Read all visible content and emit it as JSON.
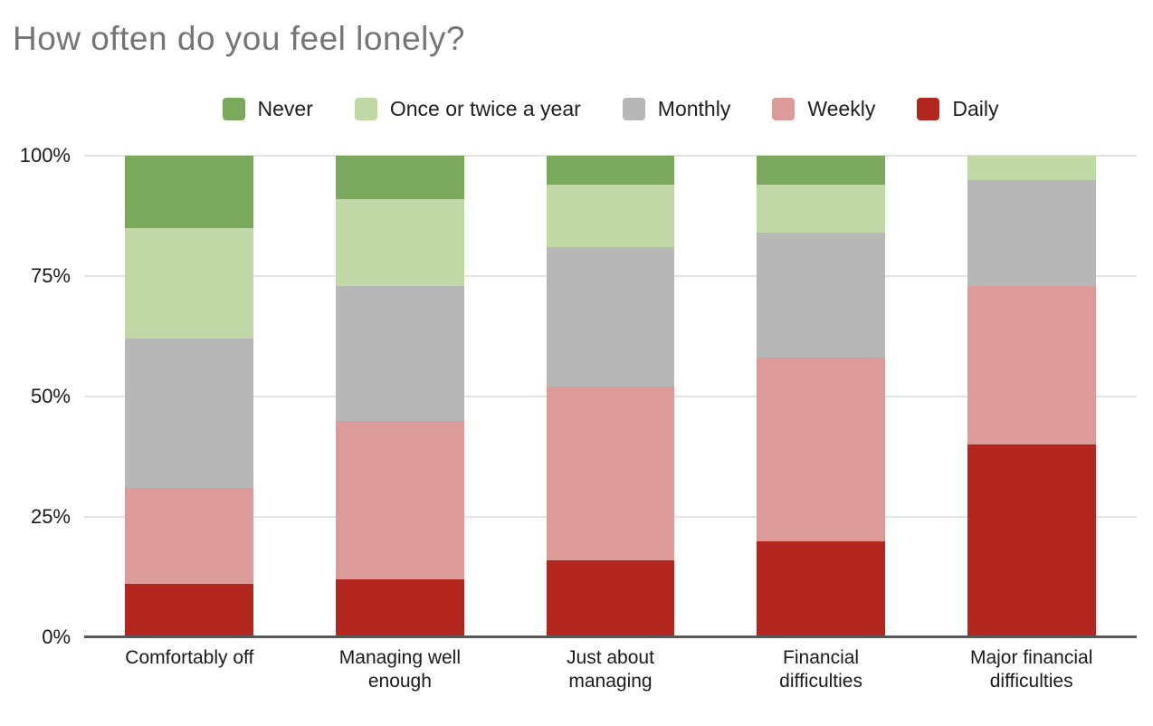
{
  "title": {
    "text": "How often do you feel lonely?"
  },
  "colors": {
    "title_text": "#757575",
    "gridline": "#e3e3e3",
    "axis_line": "#595959"
  },
  "chart_data": {
    "type": "bar",
    "stacked": true,
    "title": "How often do you feel lonely?",
    "categories": [
      "Comfortably off",
      "Managing well enough",
      "Just about managing",
      "Financial difficulties",
      "Major financial difficulties"
    ],
    "series": [
      {
        "name": "Never",
        "color": "#7AA85C",
        "values": [
          15,
          9,
          6,
          6,
          0
        ]
      },
      {
        "name": "Once or twice a year",
        "color": "#BFD8A6",
        "values": [
          23,
          18,
          13,
          10,
          5
        ]
      },
      {
        "name": "Monthly",
        "color": "#B7B7B7",
        "values": [
          31,
          28,
          29,
          26,
          22
        ]
      },
      {
        "name": "Weekly",
        "color": "#DC9B98",
        "values": [
          20,
          33,
          36,
          38,
          33
        ]
      },
      {
        "name": "Daily",
        "color": "#B3271E",
        "values": [
          11,
          12,
          16,
          20,
          40
        ]
      }
    ],
    "ylabel": "",
    "xlabel": "",
    "ylim": [
      0,
      100
    ],
    "yticks": [
      {
        "value": 0,
        "label": "0%"
      },
      {
        "value": 25,
        "label": "25%"
      },
      {
        "value": 50,
        "label": "50%"
      },
      {
        "value": 75,
        "label": "75%"
      },
      {
        "value": 100,
        "label": "100%"
      }
    ],
    "grid": true,
    "legend_position": "top"
  }
}
